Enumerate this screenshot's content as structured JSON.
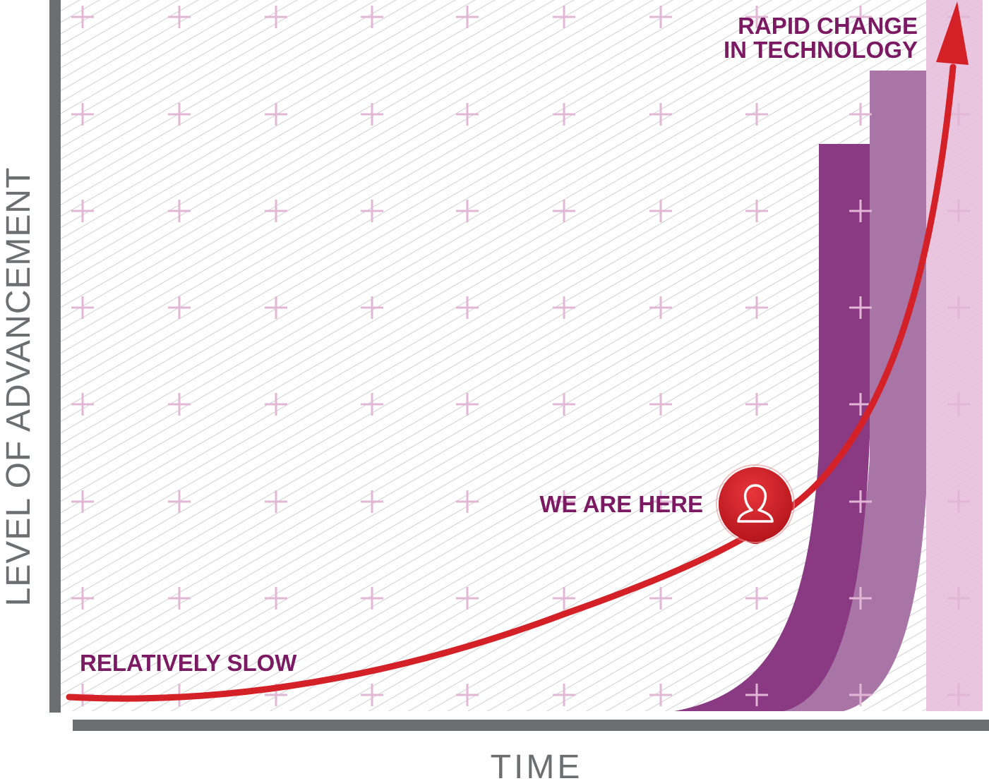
{
  "diagram": {
    "y_axis_label": "LEVEL OF ADVANCEMENT",
    "x_axis_label": "TIME",
    "label_slow": "RELATIVELY SLOW",
    "label_here": "WE ARE HERE",
    "label_rapid_line1": "RAPID CHANGE",
    "label_rapid_line2": "IN TECHNOLOGY",
    "marker_icon": "person-icon",
    "colors": {
      "curve": "#d42127",
      "axis": "#6d6e70",
      "text_purple": "#7b1a63",
      "band_dark": "#8a3a82",
      "band_mid": "#a975a6",
      "band_light": "#e7bfdc",
      "hatch": "#bfbfbf",
      "plus": "#e2b7d6"
    }
  }
}
